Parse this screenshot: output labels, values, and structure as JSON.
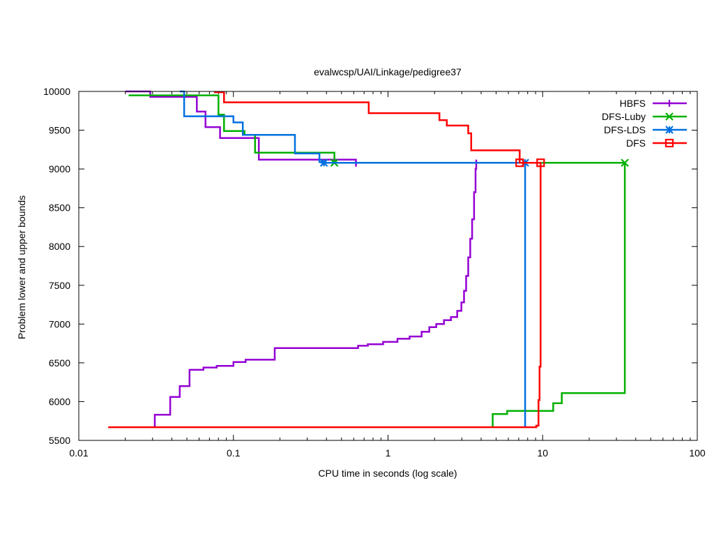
{
  "chart_data": {
    "type": "line",
    "title": "evalwcsp/UAI/Linkage/pedigree37",
    "xlabel": "CPU time in seconds (log scale)",
    "ylabel": "Problem lower and upper bounds",
    "xscale": "log",
    "xlim": [
      0.01,
      100
    ],
    "ylim": [
      5500,
      10000
    ],
    "xticks": [
      {
        "value": 0.01,
        "label": "0.01"
      },
      {
        "value": 0.1,
        "label": "0.1"
      },
      {
        "value": 1,
        "label": "1"
      },
      {
        "value": 10,
        "label": "10"
      },
      {
        "value": 100,
        "label": "100"
      }
    ],
    "yticks": [
      {
        "value": 5500,
        "label": "5500"
      },
      {
        "value": 6000,
        "label": "6000"
      },
      {
        "value": 6500,
        "label": "6500"
      },
      {
        "value": 7000,
        "label": "7000"
      },
      {
        "value": 7500,
        "label": "7500"
      },
      {
        "value": 8000,
        "label": "8000"
      },
      {
        "value": 8500,
        "label": "8500"
      },
      {
        "value": 9000,
        "label": "9000"
      },
      {
        "value": 9500,
        "label": "9500"
      },
      {
        "value": 10000,
        "label": "10000"
      }
    ],
    "grid": false,
    "legend_position": "top-right",
    "series": [
      {
        "name": "HBFS",
        "color": "#9400d3",
        "marker": "plus",
        "marker_points": [],
        "paths": [
          [
            [
              0.02,
              10000
            ],
            [
              0.029,
              10000
            ],
            [
              0.029,
              9930
            ],
            [
              0.058,
              9930
            ],
            [
              0.058,
              9740
            ],
            [
              0.066,
              9740
            ],
            [
              0.066,
              9540
            ],
            [
              0.082,
              9540
            ],
            [
              0.082,
              9400
            ],
            [
              0.146,
              9400
            ],
            [
              0.146,
              9120
            ],
            [
              0.62,
              9120
            ],
            [
              0.62,
              9030
            ]
          ],
          [
            [
              0.031,
              5670
            ],
            [
              0.031,
              5830
            ],
            [
              0.039,
              5830
            ],
            [
              0.039,
              6060
            ],
            [
              0.045,
              6060
            ],
            [
              0.045,
              6200
            ],
            [
              0.052,
              6200
            ],
            [
              0.052,
              6410
            ],
            [
              0.064,
              6410
            ],
            [
              0.064,
              6440
            ],
            [
              0.078,
              6440
            ],
            [
              0.078,
              6460
            ],
            [
              0.1,
              6460
            ],
            [
              0.1,
              6510
            ],
            [
              0.12,
              6510
            ],
            [
              0.12,
              6540
            ],
            [
              0.185,
              6540
            ],
            [
              0.185,
              6690
            ],
            [
              0.64,
              6690
            ],
            [
              0.64,
              6720
            ],
            [
              0.74,
              6720
            ],
            [
              0.74,
              6740
            ],
            [
              0.93,
              6740
            ],
            [
              0.93,
              6770
            ],
            [
              1.15,
              6770
            ],
            [
              1.15,
              6810
            ],
            [
              1.38,
              6810
            ],
            [
              1.38,
              6840
            ],
            [
              1.65,
              6840
            ],
            [
              1.65,
              6900
            ],
            [
              1.85,
              6900
            ],
            [
              1.85,
              6960
            ],
            [
              2.05,
              6960
            ],
            [
              2.05,
              7000
            ],
            [
              2.3,
              7000
            ],
            [
              2.3,
              7050
            ],
            [
              2.55,
              7050
            ],
            [
              2.55,
              7090
            ],
            [
              2.8,
              7090
            ],
            [
              2.8,
              7170
            ],
            [
              2.98,
              7170
            ],
            [
              2.98,
              7280
            ],
            [
              3.1,
              7280
            ],
            [
              3.1,
              7430
            ],
            [
              3.2,
              7430
            ],
            [
              3.2,
              7620
            ],
            [
              3.3,
              7620
            ],
            [
              3.3,
              7860
            ],
            [
              3.4,
              7860
            ],
            [
              3.4,
              8100
            ],
            [
              3.5,
              8100
            ],
            [
              3.5,
              8350
            ],
            [
              3.6,
              8350
            ],
            [
              3.6,
              8700
            ],
            [
              3.68,
              8700
            ],
            [
              3.68,
              9000
            ],
            [
              3.72,
              9000
            ],
            [
              3.72,
              9120
            ]
          ]
        ]
      },
      {
        "name": "DFS-Luby",
        "color": "#00b000",
        "marker": "x",
        "marker_points": [
          [
            0.45,
            9080
          ],
          [
            34,
            9080
          ]
        ],
        "paths": [
          [
            [
              0.021,
              9950
            ],
            [
              0.08,
              9950
            ],
            [
              0.08,
              9700
            ],
            [
              0.087,
              9700
            ],
            [
              0.087,
              9490
            ],
            [
              0.118,
              9490
            ],
            [
              0.118,
              9440
            ],
            [
              0.138,
              9440
            ],
            [
              0.138,
              9210
            ],
            [
              0.45,
              9210
            ],
            [
              0.45,
              9080
            ],
            [
              34,
              9080
            ],
            [
              34,
              6110
            ],
            [
              13.3,
              6110
            ],
            [
              13.3,
              5980
            ],
            [
              11.7,
              5980
            ],
            [
              11.7,
              5880
            ],
            [
              5.9,
              5880
            ],
            [
              5.9,
              5840
            ],
            [
              4.75,
              5840
            ],
            [
              4.75,
              5670
            ]
          ]
        ]
      },
      {
        "name": "DFS-LDS",
        "color": "#0070e0",
        "marker": "star",
        "marker_points": [
          [
            0.385,
            9080
          ],
          [
            7.7,
            9080
          ]
        ],
        "paths": [
          [
            [
              0.045,
              10000
            ],
            [
              0.048,
              10000
            ],
            [
              0.048,
              9680
            ],
            [
              0.1,
              9680
            ],
            [
              0.1,
              9600
            ],
            [
              0.115,
              9600
            ],
            [
              0.115,
              9440
            ],
            [
              0.25,
              9440
            ],
            [
              0.25,
              9200
            ],
            [
              0.36,
              9200
            ],
            [
              0.36,
              9090
            ],
            [
              0.385,
              9090
            ],
            [
              0.385,
              9080
            ],
            [
              7.7,
              9080
            ],
            [
              7.7,
              5670
            ]
          ]
        ]
      },
      {
        "name": "DFS",
        "color": "#ff0000",
        "marker": "square",
        "marker_points": [
          [
            7.1,
            9080
          ],
          [
            9.7,
            9080
          ]
        ],
        "paths": [
          [
            [
              0.075,
              9990
            ],
            [
              0.087,
              9990
            ],
            [
              0.087,
              9860
            ],
            [
              0.75,
              9860
            ],
            [
              0.75,
              9720
            ],
            [
              2.15,
              9720
            ],
            [
              2.15,
              9630
            ],
            [
              2.4,
              9630
            ],
            [
              2.4,
              9560
            ],
            [
              3.3,
              9560
            ],
            [
              3.3,
              9460
            ],
            [
              3.45,
              9460
            ],
            [
              3.45,
              9240
            ],
            [
              7.1,
              9240
            ],
            [
              7.1,
              9080
            ],
            [
              9.7,
              9080
            ],
            [
              9.7,
              6450
            ],
            [
              9.55,
              6450
            ],
            [
              9.55,
              6020
            ],
            [
              9.4,
              6020
            ],
            [
              9.4,
              5690
            ],
            [
              9.1,
              5690
            ],
            [
              9.1,
              5670
            ],
            [
              0.0155,
              5670
            ]
          ]
        ]
      }
    ]
  }
}
